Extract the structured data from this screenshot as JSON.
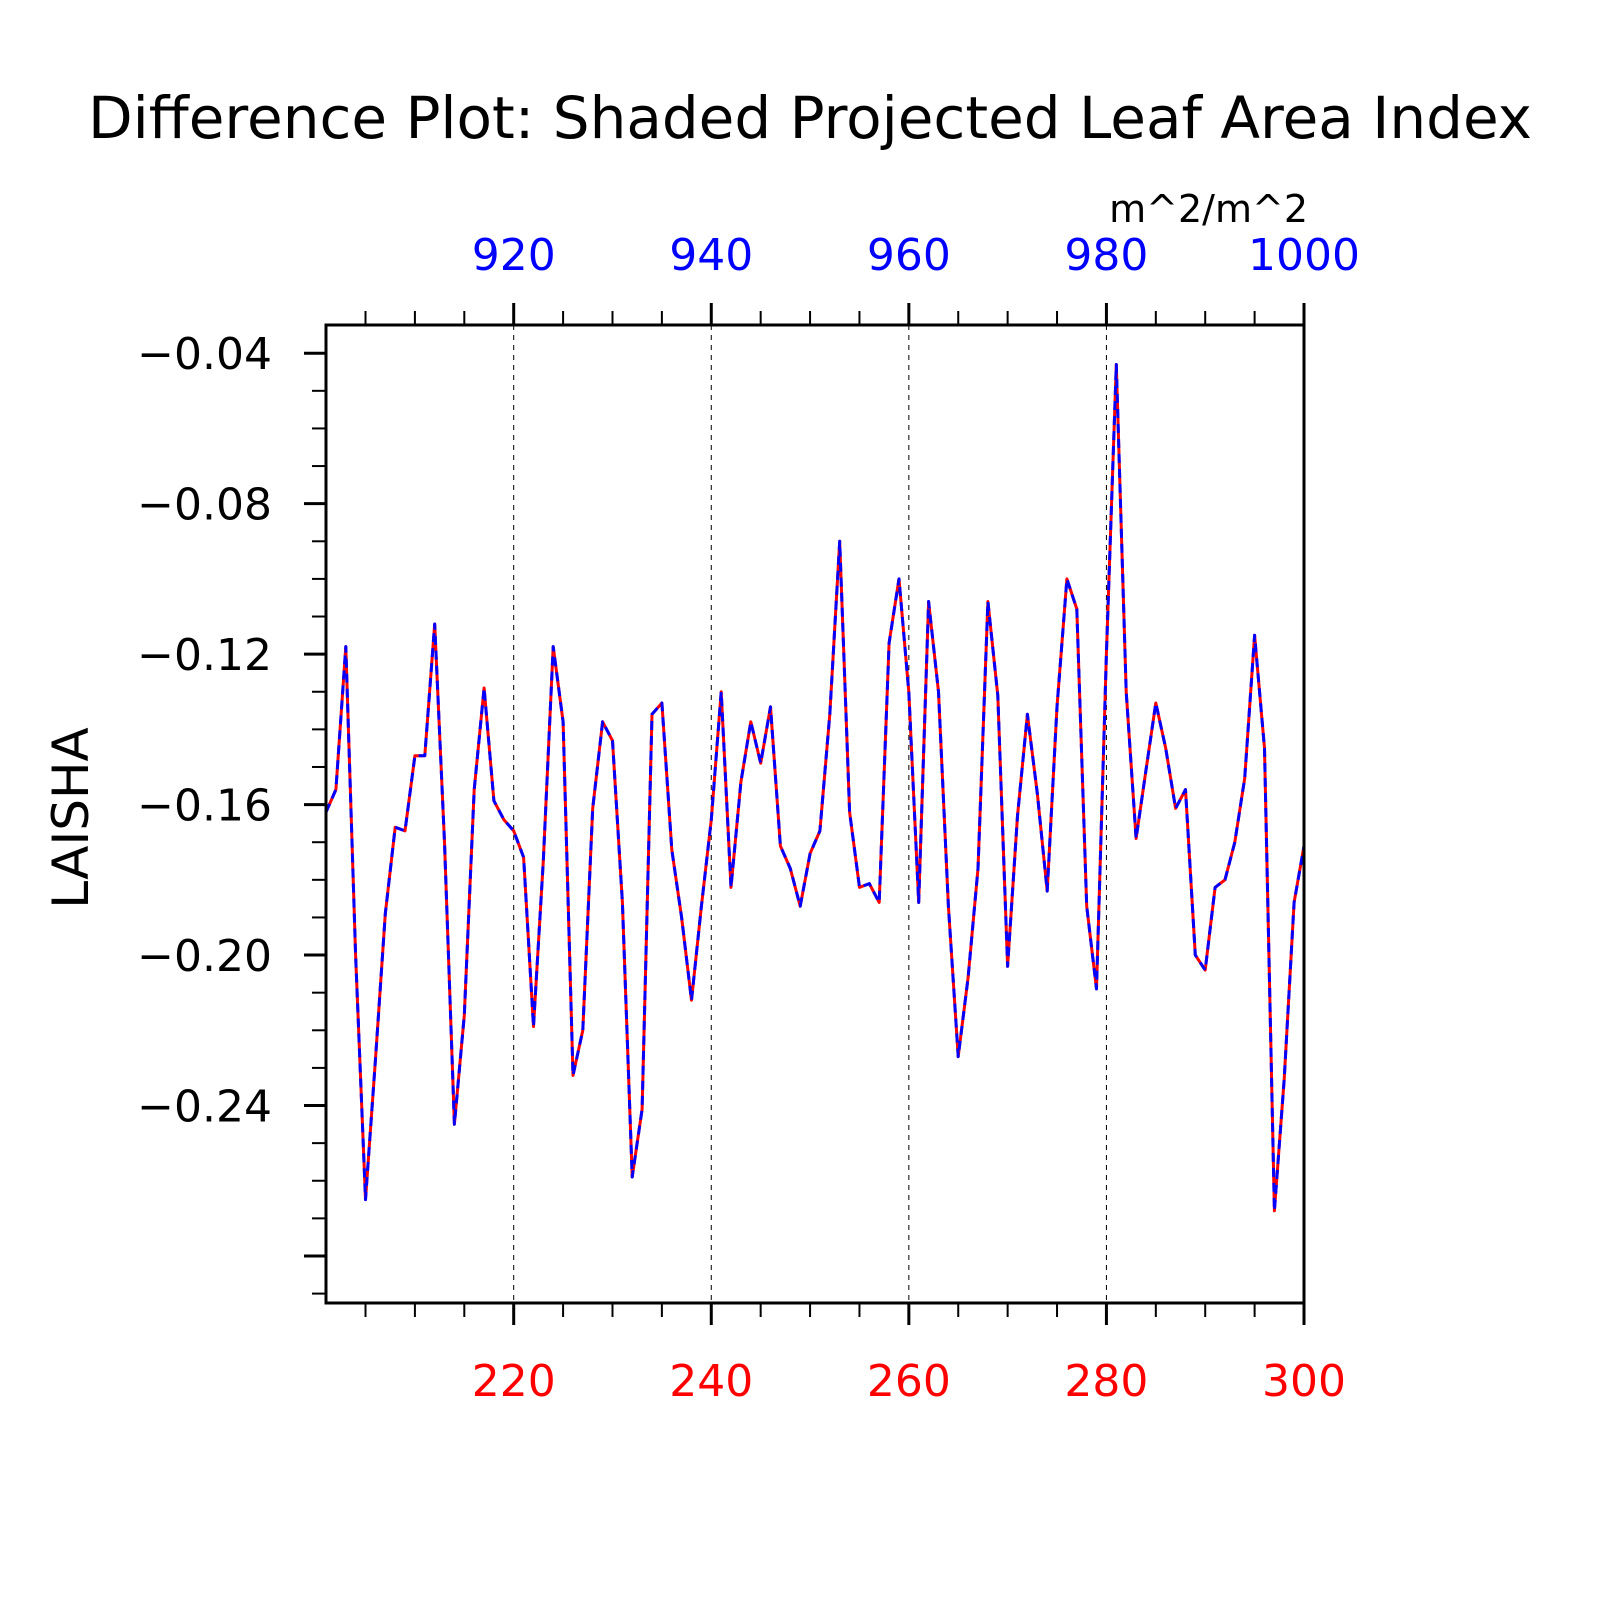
{
  "chart_data": {
    "type": "line",
    "title": "Difference Plot: Shaded Projected Leaf Area Index",
    "units": "m^2/m^2",
    "ylabel": "LAISHA",
    "xlim": [
      201,
      300
    ],
    "ylim": [
      -0.2925,
      -0.0325
    ],
    "top_xlim": [
      901,
      1000
    ],
    "yticks": [
      -0.04,
      -0.08,
      -0.12,
      -0.16,
      -0.2,
      -0.24
    ],
    "ytick_labels": [
      "−0.04",
      "−0.08",
      "−0.12",
      "−0.16",
      "−0.20",
      "−0.24"
    ],
    "xticks": [
      220,
      240,
      260,
      280,
      300
    ],
    "xtick_labels": [
      "220",
      "240",
      "260",
      "280",
      "300"
    ],
    "top_xticks": [
      920,
      940,
      960,
      980,
      1000
    ],
    "top_xtick_labels": [
      "920",
      "940",
      "960",
      "980",
      "1000"
    ],
    "grid_x": [
      220,
      240,
      260,
      280
    ],
    "bottom_axis_color": "#ff0000",
    "top_axis_color": "#0000ff",
    "series": [
      {
        "color": "#ff0000",
        "style": "solid",
        "x_start": 201,
        "values": [
          -0.162,
          -0.156,
          -0.118,
          -0.2,
          -0.265,
          -0.228,
          -0.189,
          -0.166,
          -0.167,
          -0.147,
          -0.147,
          -0.112,
          -0.17,
          -0.245,
          -0.216,
          -0.156,
          -0.129,
          -0.159,
          -0.164,
          -0.167,
          -0.174,
          -0.219,
          -0.175,
          -0.118,
          -0.138,
          -0.232,
          -0.22,
          -0.161,
          -0.138,
          -0.143,
          -0.186,
          -0.259,
          -0.241,
          -0.136,
          -0.133,
          -0.172,
          -0.19,
          -0.212,
          -0.187,
          -0.164,
          -0.13,
          -0.182,
          -0.154,
          -0.138,
          -0.149,
          -0.134,
          -0.171,
          -0.177,
          -0.187,
          -0.173,
          -0.167,
          -0.136,
          -0.09,
          -0.162,
          -0.182,
          -0.181,
          -0.186,
          -0.117,
          -0.1,
          -0.13,
          -0.186,
          -0.106,
          -0.13,
          -0.187,
          -0.227,
          -0.206,
          -0.177,
          -0.106,
          -0.131,
          -0.203,
          -0.163,
          -0.136,
          -0.157,
          -0.183,
          -0.134,
          -0.1,
          -0.108,
          -0.187,
          -0.209,
          -0.12,
          -0.043,
          -0.13,
          -0.169,
          -0.151,
          -0.133,
          -0.145,
          -0.161,
          -0.156,
          -0.2,
          -0.204,
          -0.182,
          -0.18,
          -0.17,
          -0.153,
          -0.115,
          -0.145,
          -0.268,
          -0.233,
          -0.186,
          -0.171
        ]
      },
      {
        "color": "#0000ff",
        "style": "dashed",
        "x_start": 201,
        "values": [
          -0.162,
          -0.156,
          -0.118,
          -0.2,
          -0.265,
          -0.228,
          -0.189,
          -0.166,
          -0.167,
          -0.147,
          -0.147,
          -0.112,
          -0.17,
          -0.245,
          -0.216,
          -0.156,
          -0.129,
          -0.159,
          -0.164,
          -0.167,
          -0.174,
          -0.219,
          -0.175,
          -0.118,
          -0.138,
          -0.232,
          -0.22,
          -0.161,
          -0.138,
          -0.143,
          -0.186,
          -0.259,
          -0.241,
          -0.136,
          -0.133,
          -0.172,
          -0.19,
          -0.212,
          -0.187,
          -0.164,
          -0.13,
          -0.182,
          -0.154,
          -0.138,
          -0.149,
          -0.134,
          -0.171,
          -0.177,
          -0.187,
          -0.173,
          -0.167,
          -0.136,
          -0.09,
          -0.162,
          -0.182,
          -0.181,
          -0.186,
          -0.117,
          -0.1,
          -0.13,
          -0.186,
          -0.106,
          -0.13,
          -0.187,
          -0.227,
          -0.206,
          -0.177,
          -0.106,
          -0.131,
          -0.203,
          -0.163,
          -0.136,
          -0.157,
          -0.183,
          -0.134,
          -0.1,
          -0.108,
          -0.187,
          -0.209,
          -0.12,
          -0.043,
          -0.13,
          -0.169,
          -0.151,
          -0.133,
          -0.145,
          -0.161,
          -0.156,
          -0.2,
          -0.204,
          -0.182,
          -0.18,
          -0.17,
          -0.153,
          -0.115,
          -0.145,
          -0.268,
          -0.233,
          -0.186,
          -0.171
        ]
      }
    ]
  }
}
